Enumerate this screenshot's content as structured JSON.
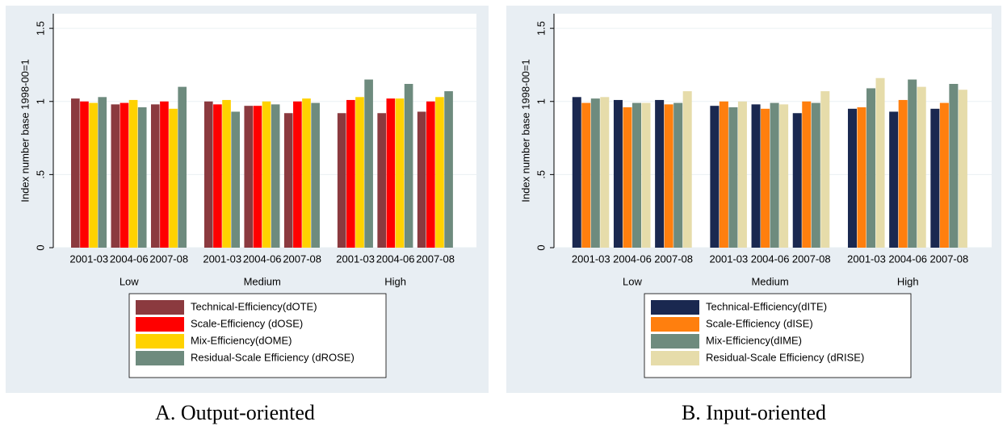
{
  "chart_data": [
    {
      "type": "bar",
      "caption": "A. Output-oriented",
      "ylabel": "Index number base 1998-00=1",
      "categories": [
        "2001-03",
        "2004-06",
        "2007-08",
        "2001-03",
        "2004-06",
        "2007-08",
        "2001-03",
        "2004-06",
        "2007-08"
      ],
      "group_labels": [
        "Low",
        "Medium",
        "High"
      ],
      "ylim": [
        0,
        1.6
      ],
      "yticks": [
        0,
        {
          "value": 0.5,
          "label": ".5"
        },
        1,
        1.5
      ],
      "grid": true,
      "series": [
        {
          "name": "Technical-Efficiency(dOTE)",
          "color": "#8b3a3f",
          "values": [
            1.02,
            0.98,
            0.98,
            1.0,
            0.97,
            0.92,
            0.92,
            0.92,
            0.93
          ]
        },
        {
          "name": "Scale-Efficiency (dOSE)",
          "color": "#ff0000",
          "values": [
            1.0,
            0.99,
            1.0,
            0.98,
            0.97,
            1.0,
            1.01,
            1.02,
            1.0
          ]
        },
        {
          "name": "Mix-Efficiency(dOME)",
          "color": "#ffd200",
          "values": [
            0.99,
            1.01,
            0.95,
            1.01,
            1.0,
            1.02,
            1.03,
            1.02,
            1.03
          ]
        },
        {
          "name": "Residual-Scale Efficiency (dROSE)",
          "color": "#6e8b7e",
          "values": [
            1.03,
            0.96,
            1.1,
            0.93,
            0.98,
            0.99,
            1.15,
            1.12,
            1.07
          ]
        }
      ]
    },
    {
      "type": "bar",
      "caption": "B. Input-oriented",
      "ylabel": "Index number base 1998-00=1",
      "categories": [
        "2001-03",
        "2004-06",
        "2007-08",
        "2001-03",
        "2004-06",
        "2007-08",
        "2001-03",
        "2004-06",
        "2007-08"
      ],
      "group_labels": [
        "Low",
        "Medium",
        "High"
      ],
      "ylim": [
        0,
        1.6
      ],
      "yticks": [
        0,
        {
          "value": 0.5,
          "label": ".5"
        },
        1,
        1.5
      ],
      "grid": true,
      "series": [
        {
          "name": "Technical-Efficiency(dITE)",
          "color": "#1a2850",
          "values": [
            1.03,
            1.01,
            1.01,
            0.97,
            0.98,
            0.92,
            0.95,
            0.93,
            0.95
          ]
        },
        {
          "name": "Scale-Efficiency (dISE)",
          "color": "#ff7f0e",
          "values": [
            0.99,
            0.96,
            0.98,
            1.0,
            0.95,
            1.0,
            0.96,
            1.01,
            0.99
          ]
        },
        {
          "name": "Mix-Efficiency(dIME)",
          "color": "#6e8b7e",
          "values": [
            1.02,
            0.99,
            0.99,
            0.96,
            0.99,
            0.99,
            1.09,
            1.15,
            1.12
          ]
        },
        {
          "name": "Residual-Scale Efficiency (dRISE)",
          "color": "#e6dcaa",
          "values": [
            1.03,
            0.99,
            1.07,
            1.0,
            0.98,
            1.07,
            1.16,
            1.1,
            1.08
          ]
        }
      ]
    }
  ]
}
